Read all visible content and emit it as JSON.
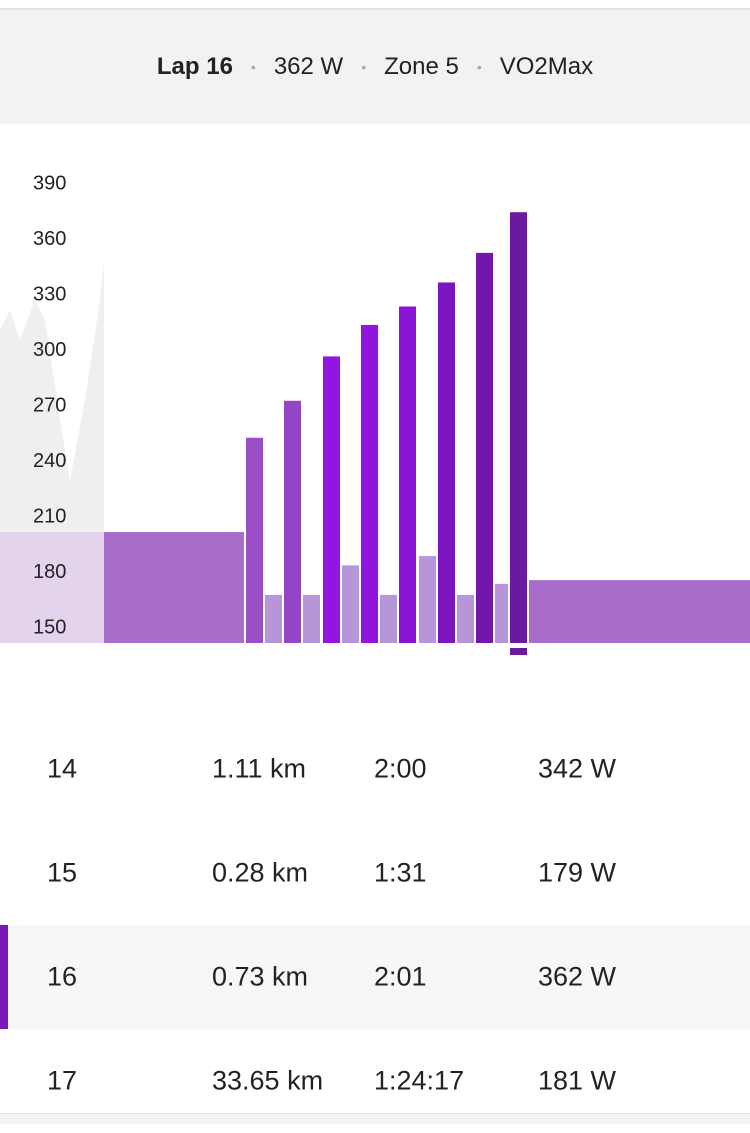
{
  "header": {
    "lap": "Lap 16",
    "power": "362 W",
    "zone": "Zone 5",
    "zone_name": "VO2Max"
  },
  "chart_data": {
    "type": "bar",
    "values": [
      202,
      202,
      253,
      168,
      273,
      168,
      297,
      184,
      314,
      168,
      324,
      189,
      337,
      168,
      353,
      174,
      375,
      176
    ],
    "colors": [
      "#e4d3ec",
      "#a86dcb",
      "#9a4fc9",
      "#b795d9",
      "#9444c6",
      "#b795d9",
      "#9414e0",
      "#b795d9",
      "#9014dc",
      "#b795d9",
      "#8a14d4",
      "#b795d9",
      "#7b15c0",
      "#b795d9",
      "#7316ae",
      "#b795d9",
      "#6b1aa0",
      "#a86dcb"
    ],
    "ylim": [
      142,
      420
    ],
    "yticks": [
      150,
      180,
      210,
      240,
      270,
      300,
      330,
      360,
      390
    ]
  },
  "table": {
    "rows": [
      [
        "14",
        "1.11 km",
        "2:00",
        "342 W"
      ],
      [
        "15",
        "0.28 km",
        "1:31",
        "179 W"
      ],
      [
        "16",
        "0.73 km",
        "2:01",
        "362 W"
      ],
      [
        "17",
        "33.65 km",
        "1:24:17",
        "181 W"
      ]
    ]
  }
}
